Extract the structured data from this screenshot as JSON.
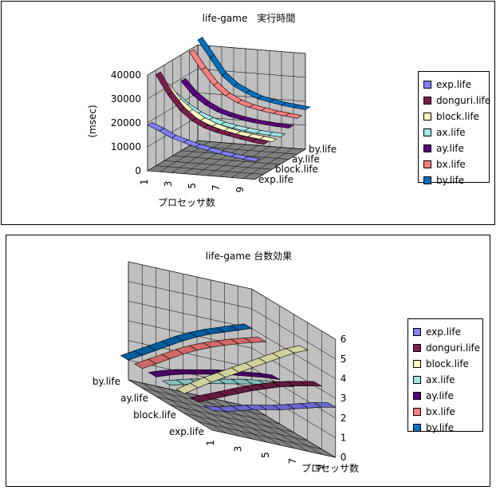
{
  "chart_data": [
    {
      "type": "surface",
      "title": "life-game　実行時間",
      "xlabel": "プロセッサ数",
      "ylabel": "(msec)",
      "categories": [
        "1",
        "2",
        "3",
        "4",
        "5",
        "6",
        "7",
        "8",
        "9",
        "10"
      ],
      "x_tick_labels": [
        "1",
        "3",
        "5",
        "7",
        "9"
      ],
      "zlim": [
        0,
        40000
      ],
      "z_ticks": [
        "0",
        "10000",
        "20000",
        "30000",
        "40000"
      ],
      "depth_labels": [
        "exp.life",
        "block.life",
        "ay.life",
        "by.life"
      ],
      "series": [
        {
          "name": "exp.life",
          "values": [
            19000,
            17000,
            14500,
            13000,
            11500,
            10500,
            9500,
            8700,
            8000,
            7500
          ]
        },
        {
          "name": "donguri.life",
          "values": [
            38000,
            30000,
            24000,
            20000,
            17500,
            16000,
            15000,
            14000,
            13200,
            12500
          ]
        },
        {
          "name": "block.life",
          "values": [
            31000,
            25000,
            21000,
            18000,
            16000,
            14500,
            13500,
            12800,
            12200,
            11500
          ]
        },
        {
          "name": "ax.life",
          "values": [
            25000,
            21000,
            18000,
            16000,
            14500,
            13500,
            12800,
            12200,
            11800,
            11500
          ]
        },
        {
          "name": "ay.life",
          "values": [
            29000,
            23500,
            20000,
            17500,
            16000,
            15000,
            14200,
            13700,
            13300,
            13000
          ]
        },
        {
          "name": "bx.life",
          "values": [
            39000,
            32000,
            26000,
            22000,
            19500,
            18000,
            17000,
            16200,
            15600,
            15000
          ]
        },
        {
          "name": "by.life",
          "values": [
            42000,
            35000,
            28000,
            24000,
            21500,
            19500,
            18500,
            17600,
            17000,
            16500
          ]
        }
      ],
      "colors": [
        "#8080ff",
        "#7b1f4f",
        "#ffffc0",
        "#a0e8e8",
        "#5a0080",
        "#ff8080",
        "#0070c0"
      ]
    },
    {
      "type": "surface",
      "title": "life-game 台数効果",
      "xlabel": "プロセッサ数",
      "categories": [
        "1",
        "2",
        "3",
        "4",
        "5",
        "6",
        "7",
        "8",
        "9",
        "10"
      ],
      "x_tick_labels": [
        "1",
        "3",
        "5",
        "7",
        "9"
      ],
      "zlim": [
        0,
        6
      ],
      "z_ticks": [
        "0",
        "1",
        "2",
        "3",
        "4",
        "5",
        "6"
      ],
      "depth_labels": [
        "exp.life",
        "block.life",
        "ay.life",
        "by.life"
      ],
      "series": [
        {
          "name": "exp.life",
          "values": [
            1.0,
            1.1,
            1.3,
            1.5,
            1.65,
            1.8,
            2.0,
            2.2,
            2.4,
            2.55
          ]
        },
        {
          "name": "donguri.life",
          "values": [
            1.0,
            1.3,
            1.6,
            1.9,
            2.2,
            2.45,
            2.7,
            2.9,
            3.05,
            3.2
          ]
        },
        {
          "name": "block.life",
          "values": [
            1.0,
            1.45,
            1.9,
            2.3,
            2.7,
            3.1,
            3.5,
            3.9,
            4.3,
            4.6
          ]
        },
        {
          "name": "ax.life",
          "values": [
            1.0,
            1.2,
            1.4,
            1.55,
            1.7,
            1.85,
            2.0,
            2.1,
            2.2,
            2.3
          ]
        },
        {
          "name": "ay.life",
          "values": [
            1.0,
            1.25,
            1.45,
            1.6,
            1.75,
            1.9,
            2.0,
            2.1,
            2.2,
            2.25
          ]
        },
        {
          "name": "bx.life",
          "values": [
            1.0,
            1.4,
            1.8,
            2.2,
            2.55,
            2.85,
            3.1,
            3.35,
            3.55,
            3.75
          ]
        },
        {
          "name": "by.life",
          "values": [
            1.0,
            1.4,
            1.8,
            2.2,
            2.6,
            2.95,
            3.25,
            3.5,
            3.75,
            4.0
          ]
        }
      ],
      "colors": [
        "#8080ff",
        "#7b1f4f",
        "#ffffc0",
        "#a0e8e8",
        "#5a0080",
        "#ff8080",
        "#0070c0"
      ]
    }
  ]
}
